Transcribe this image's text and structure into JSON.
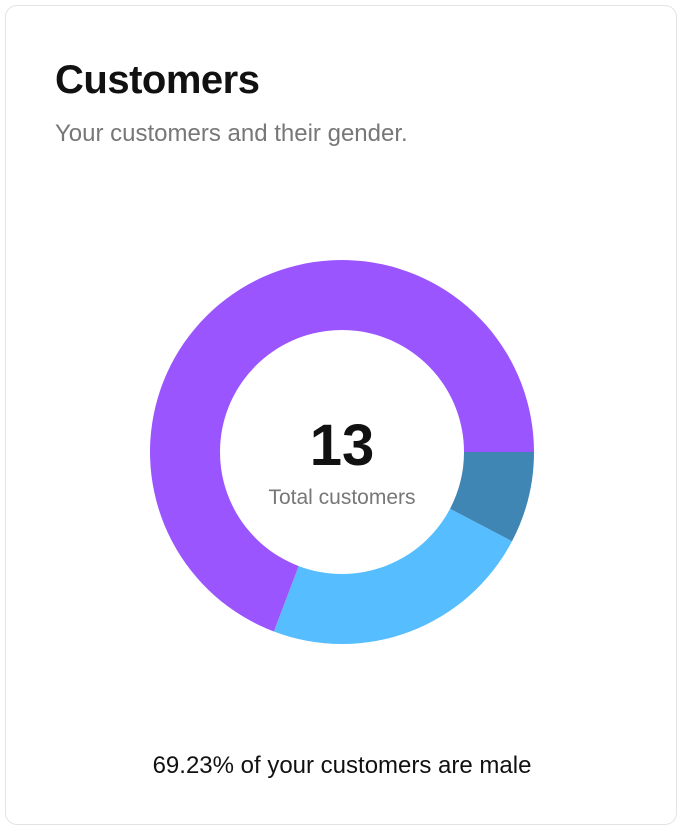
{
  "card": {
    "title": "Customers",
    "subtitle": "Your customers and their gender.",
    "footer": "69.23% of your customers are male"
  },
  "chart_data": {
    "type": "pie",
    "donut": true,
    "center_value": "13",
    "center_label": "Total customers",
    "slices": [
      {
        "value": 9,
        "color": "#9b55ff"
      },
      {
        "value": 3,
        "color": "#56bdff"
      },
      {
        "value": 1,
        "color": "#3f86b4"
      }
    ]
  }
}
